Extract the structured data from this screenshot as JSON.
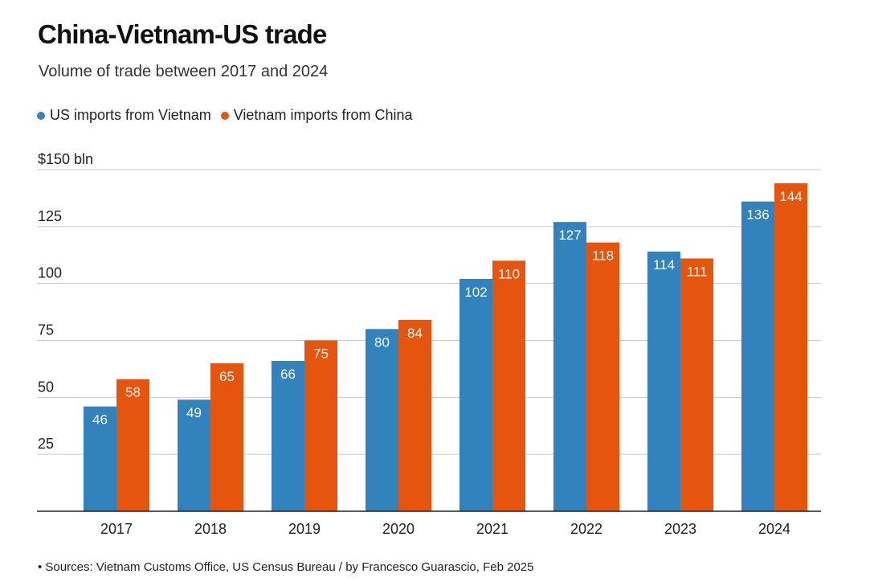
{
  "title": "China-Vietnam-US trade",
  "subtitle": "Volume of trade between 2017 and 2024",
  "footer": "• Sources: Vietnam Customs Office, US Census Bureau / by Francesco Guarascio, Feb 2025",
  "colors": {
    "us": "#3182bd",
    "vn": "#e6550d",
    "grid": "#c8c8c8",
    "axis": "#222222"
  },
  "chart_data": {
    "type": "bar",
    "categories": [
      "2017",
      "2018",
      "2019",
      "2020",
      "2021",
      "2022",
      "2023",
      "2024"
    ],
    "series": [
      {
        "name": "US imports from Vietnam",
        "values": [
          46,
          49,
          66,
          80,
          102,
          127,
          114,
          136
        ]
      },
      {
        "name": "Vietnam imports from China",
        "values": [
          58,
          65,
          75,
          84,
          110,
          118,
          111,
          144
        ]
      }
    ],
    "yticks": [
      {
        "value": 25,
        "label": "25"
      },
      {
        "value": 50,
        "label": "50"
      },
      {
        "value": 75,
        "label": "75"
      },
      {
        "value": 100,
        "label": "100"
      },
      {
        "value": 125,
        "label": "125"
      },
      {
        "value": 150,
        "label": "$150 bln"
      }
    ],
    "ylim": [
      0,
      150
    ],
    "grid": true,
    "legend": "top-left"
  }
}
